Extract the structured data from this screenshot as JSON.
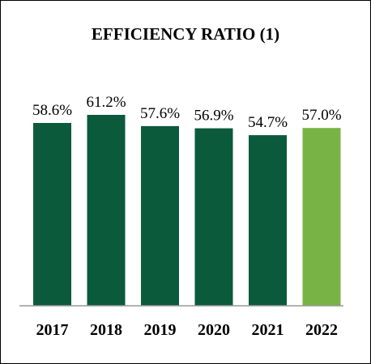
{
  "chart_data": {
    "type": "bar",
    "title": "EFFICIENCY RATIO (1)",
    "categories": [
      "2017",
      "2018",
      "2019",
      "2020",
      "2021",
      "2022"
    ],
    "values": [
      58.6,
      61.2,
      57.6,
      56.9,
      54.7,
      57.0
    ],
    "data_labels": [
      "58.6%",
      "61.2%",
      "57.6%",
      "56.9%",
      "54.7%",
      "57.0%"
    ],
    "unit": "%",
    "xlabel": "",
    "ylabel": "",
    "ylim": [
      0,
      61.2
    ],
    "grid": false,
    "legend": "none",
    "colors": {
      "bar_default": "#0b5a3c",
      "bar_highlight": "#78b445",
      "axis": "#999999"
    },
    "highlight_index": 5
  }
}
